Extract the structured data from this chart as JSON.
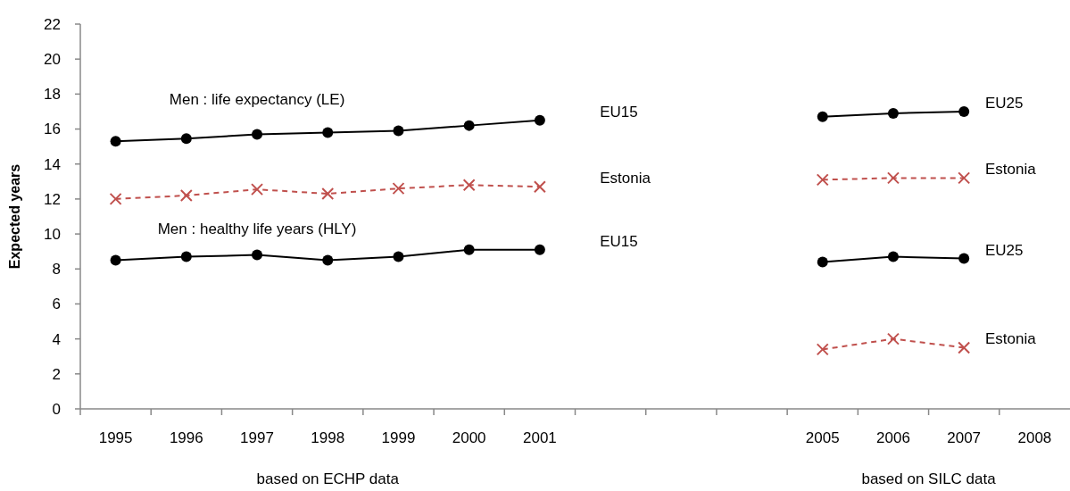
{
  "chart_data": {
    "type": "line",
    "ylabel": "Expected years",
    "categories": [
      "1995",
      "1996",
      "1997",
      "1998",
      "1999",
      "2000",
      "2001",
      null,
      null,
      null,
      "2005",
      "2006",
      "2007",
      "2008"
    ],
    "series": [
      {
        "name": "EU15",
        "color": "#000000",
        "marker": "circle",
        "line_style": "solid",
        "values": [
          15.3,
          15.45,
          15.7,
          15.8,
          15.9,
          16.2,
          16.5,
          null,
          null,
          null,
          null,
          null,
          null,
          null
        ]
      },
      {
        "name": "Estonia",
        "color": "#c0504d",
        "marker": "cross",
        "line_style": "dashed",
        "values": [
          12.0,
          12.2,
          12.55,
          12.3,
          12.6,
          12.8,
          12.7,
          null,
          null,
          null,
          null,
          null,
          null,
          null
        ]
      },
      {
        "name": "EU15",
        "color": "#000000",
        "marker": "circle",
        "line_style": "solid",
        "values": [
          8.5,
          8.7,
          8.8,
          8.5,
          8.7,
          9.1,
          9.1,
          null,
          null,
          null,
          null,
          null,
          null,
          null
        ]
      },
      {
        "name": "EU25",
        "color": "#000000",
        "marker": "circle",
        "line_style": "solid",
        "values": [
          null,
          null,
          null,
          null,
          null,
          null,
          null,
          null,
          null,
          null,
          16.7,
          16.9,
          17.0,
          null
        ]
      },
      {
        "name": "Estonia",
        "color": "#c0504d",
        "marker": "cross",
        "line_style": "dashed",
        "values": [
          null,
          null,
          null,
          null,
          null,
          null,
          null,
          null,
          null,
          null,
          13.1,
          13.2,
          13.2,
          null
        ]
      },
      {
        "name": "EU25",
        "color": "#000000",
        "marker": "circle",
        "line_style": "solid",
        "values": [
          null,
          null,
          null,
          null,
          null,
          null,
          null,
          null,
          null,
          null,
          8.4,
          8.7,
          8.6,
          null
        ]
      },
      {
        "name": "Estonia",
        "color": "#c0504d",
        "marker": "cross",
        "line_style": "dashed",
        "values": [
          null,
          null,
          null,
          null,
          null,
          null,
          null,
          null,
          null,
          null,
          3.4,
          4.0,
          3.5,
          null
        ]
      }
    ],
    "ylim": [
      0,
      22
    ],
    "yticks": [
      0,
      2,
      4,
      6,
      8,
      10,
      12,
      14,
      16,
      18,
      20,
      22
    ],
    "grid": false,
    "annotations": [
      "Men : life expectancy (LE)",
      "Men : healthy life years (HLY)",
      "based on ECHP data",
      "based on SILC data"
    ]
  }
}
